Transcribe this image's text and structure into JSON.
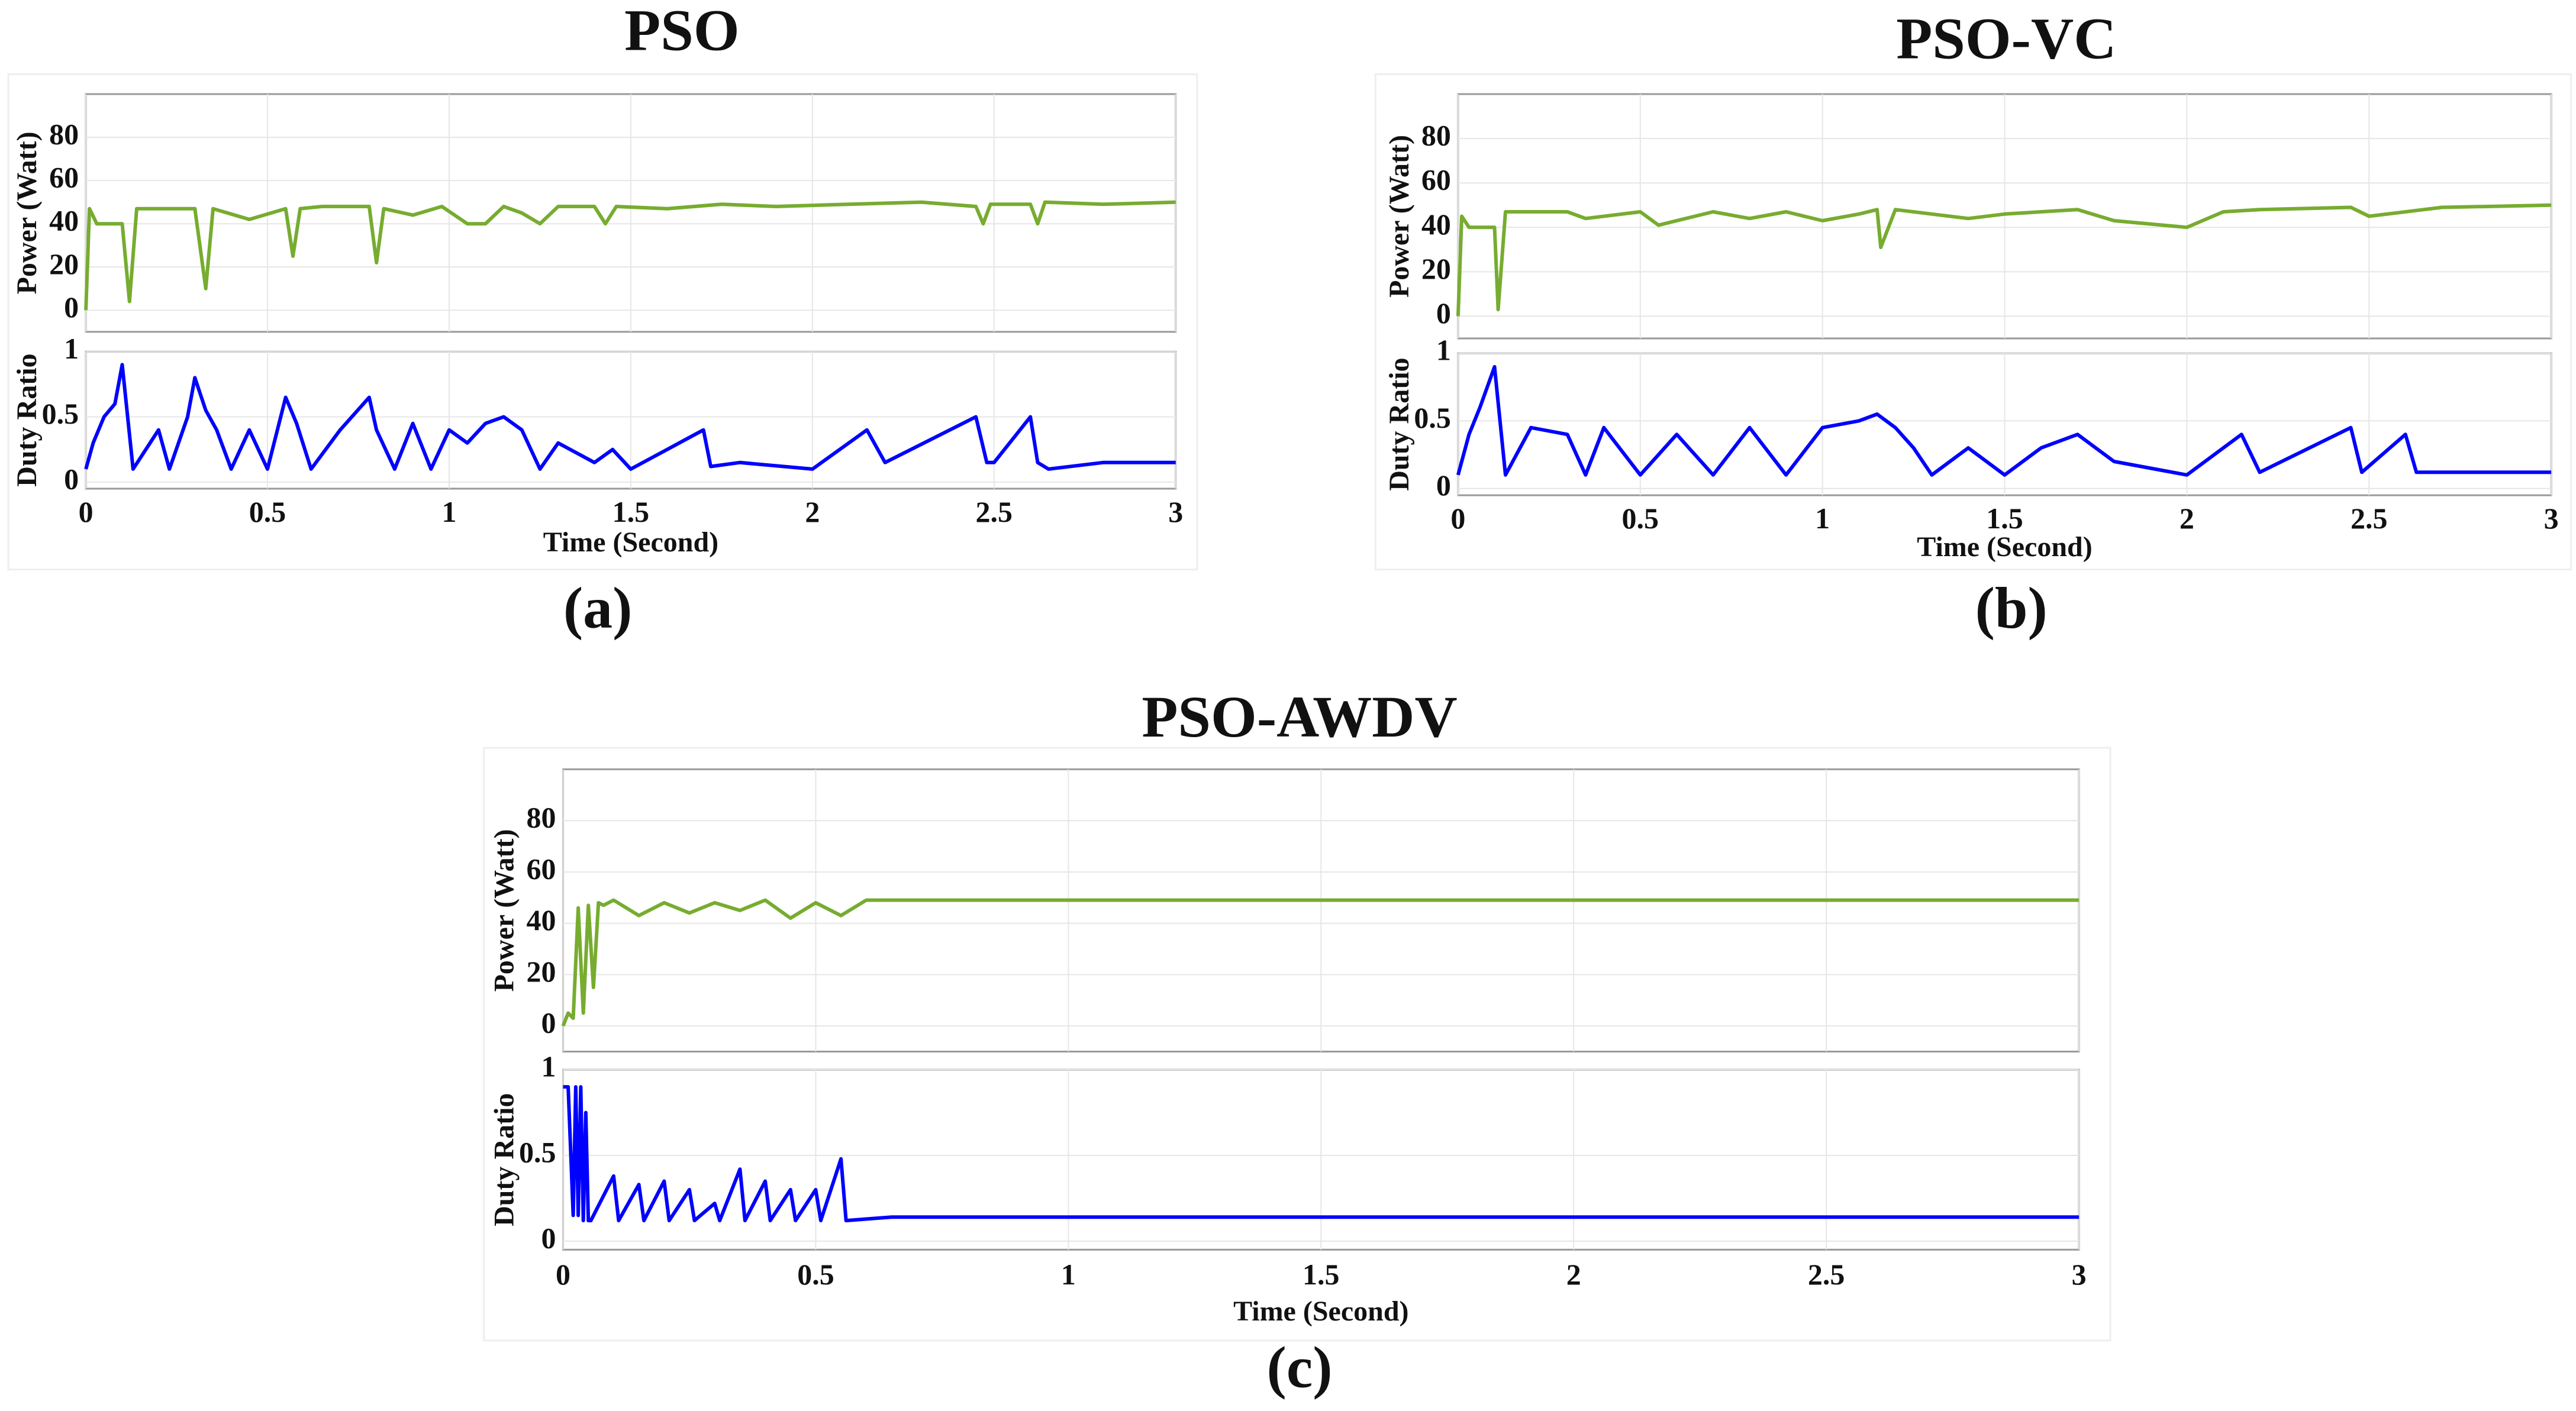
{
  "chart_data": [
    {
      "type": "line",
      "title": "PSO",
      "ylabel": "Power (Watt)",
      "color": "#77ac30",
      "grid": true,
      "show_xtick_labels": false,
      "x": [
        0,
        0.01,
        0.03,
        0.1,
        0.12,
        0.14,
        0.3,
        0.33,
        0.35,
        0.45,
        0.55,
        0.57,
        0.59,
        0.65,
        0.78,
        0.8,
        0.82,
        0.9,
        0.98,
        1.05,
        1.1,
        1.15,
        1.2,
        1.25,
        1.3,
        1.4,
        1.43,
        1.46,
        1.6,
        1.75,
        1.9,
        2.1,
        2.3,
        2.45,
        2.47,
        2.49,
        2.6,
        2.62,
        2.64,
        2.8,
        3
      ],
      "values": [
        0,
        47,
        40,
        40,
        4,
        47,
        47,
        10,
        47,
        42,
        47,
        25,
        47,
        48,
        48,
        22,
        47,
        44,
        48,
        40,
        40,
        48,
        45,
        40,
        48,
        48,
        40,
        48,
        47,
        49,
        48,
        49,
        50,
        48,
        40,
        49,
        49,
        40,
        50,
        49,
        50
      ],
      "xlim": [
        0,
        3
      ],
      "xticks": [
        0,
        0.5,
        1,
        1.5,
        2,
        2.5,
        3
      ],
      "ylim": [
        -10,
        100
      ],
      "yticks": [
        0,
        20,
        40,
        60,
        80
      ]
    },
    {
      "type": "line",
      "ylabel": "Duty Ratio",
      "xlabel": "Time (Second)",
      "caption": "(a)",
      "color": "#0000ff",
      "grid": true,
      "show_xtick_labels": true,
      "x": [
        0,
        0.02,
        0.05,
        0.08,
        0.1,
        0.13,
        0.2,
        0.23,
        0.28,
        0.3,
        0.33,
        0.36,
        0.4,
        0.45,
        0.5,
        0.55,
        0.58,
        0.62,
        0.7,
        0.78,
        0.8,
        0.85,
        0.9,
        0.95,
        1.0,
        1.05,
        1.1,
        1.15,
        1.2,
        1.25,
        1.3,
        1.4,
        1.45,
        1.5,
        1.7,
        1.72,
        1.8,
        2.0,
        2.15,
        2.2,
        2.45,
        2.48,
        2.5,
        2.6,
        2.62,
        2.65,
        2.8,
        3
      ],
      "values": [
        0.1,
        0.3,
        0.5,
        0.6,
        0.9,
        0.1,
        0.4,
        0.1,
        0.5,
        0.8,
        0.55,
        0.4,
        0.1,
        0.4,
        0.1,
        0.65,
        0.45,
        0.1,
        0.4,
        0.65,
        0.4,
        0.1,
        0.45,
        0.1,
        0.4,
        0.3,
        0.45,
        0.5,
        0.4,
        0.1,
        0.3,
        0.15,
        0.25,
        0.1,
        0.4,
        0.12,
        0.15,
        0.1,
        0.4,
        0.15,
        0.5,
        0.15,
        0.15,
        0.5,
        0.15,
        0.1,
        0.15,
        0.15
      ],
      "xlim": [
        0,
        3
      ],
      "xticks": [
        0,
        0.5,
        1,
        1.5,
        2,
        2.5,
        3
      ],
      "ylim": [
        -0.05,
        1
      ],
      "yticks": [
        0,
        0.5,
        1
      ]
    },
    {
      "type": "line",
      "title": "PSO-VC",
      "ylabel": "Power (Watt)",
      "color": "#77ac30",
      "grid": true,
      "show_xtick_labels": false,
      "x": [
        0,
        0.01,
        0.03,
        0.1,
        0.11,
        0.13,
        0.3,
        0.35,
        0.5,
        0.55,
        0.7,
        0.8,
        0.9,
        1.0,
        1.1,
        1.15,
        1.16,
        1.2,
        1.4,
        1.5,
        1.7,
        1.8,
        2.0,
        2.1,
        2.2,
        2.45,
        2.5,
        2.7,
        3
      ],
      "values": [
        0,
        45,
        40,
        40,
        3,
        47,
        47,
        44,
        47,
        41,
        47,
        44,
        47,
        43,
        46,
        48,
        31,
        48,
        44,
        46,
        48,
        43,
        40,
        47,
        48,
        49,
        45,
        49,
        50
      ],
      "xlim": [
        0,
        3
      ],
      "xticks": [
        0,
        0.5,
        1,
        1.5,
        2,
        2.5,
        3
      ],
      "ylim": [
        -10,
        100
      ],
      "yticks": [
        0,
        20,
        40,
        60,
        80
      ]
    },
    {
      "type": "line",
      "ylabel": "Duty Ratio",
      "xlabel": "Time (Second)",
      "caption": "(b)",
      "color": "#0000ff",
      "grid": true,
      "show_xtick_labels": true,
      "x": [
        0,
        0.03,
        0.06,
        0.1,
        0.13,
        0.2,
        0.3,
        0.35,
        0.4,
        0.5,
        0.6,
        0.7,
        0.8,
        0.9,
        1.0,
        1.1,
        1.15,
        1.2,
        1.25,
        1.3,
        1.4,
        1.5,
        1.6,
        1.7,
        1.8,
        2.0,
        2.15,
        2.2,
        2.45,
        2.48,
        2.6,
        2.63,
        2.8,
        3
      ],
      "values": [
        0.1,
        0.4,
        0.6,
        0.9,
        0.1,
        0.45,
        0.4,
        0.1,
        0.45,
        0.1,
        0.4,
        0.1,
        0.45,
        0.1,
        0.45,
        0.5,
        0.55,
        0.45,
        0.3,
        0.1,
        0.3,
        0.1,
        0.3,
        0.4,
        0.2,
        0.1,
        0.4,
        0.12,
        0.45,
        0.12,
        0.4,
        0.12,
        0.12,
        0.12
      ],
      "xlim": [
        0,
        3
      ],
      "xticks": [
        0,
        0.5,
        1,
        1.5,
        2,
        2.5,
        3
      ],
      "ylim": [
        -0.05,
        1
      ],
      "yticks": [
        0,
        0.5,
        1
      ]
    },
    {
      "type": "line",
      "title": "PSO-AWDV",
      "ylabel": "Power (Watt)",
      "color": "#77ac30",
      "grid": true,
      "show_xtick_labels": false,
      "x": [
        0,
        0.01,
        0.02,
        0.03,
        0.04,
        0.05,
        0.06,
        0.07,
        0.08,
        0.1,
        0.15,
        0.2,
        0.25,
        0.3,
        0.35,
        0.4,
        0.45,
        0.5,
        0.55,
        0.6,
        0.65,
        3
      ],
      "values": [
        0,
        5,
        3,
        46,
        5,
        47,
        15,
        48,
        47,
        49,
        43,
        48,
        44,
        48,
        45,
        49,
        42,
        48,
        43,
        49,
        49,
        49
      ],
      "xlim": [
        0,
        3
      ],
      "xticks": [
        0,
        0.5,
        1,
        1.5,
        2,
        2.5,
        3
      ],
      "ylim": [
        -10,
        100
      ],
      "yticks": [
        0,
        20,
        40,
        60,
        80
      ]
    },
    {
      "type": "line",
      "ylabel": "Duty Ratio",
      "xlabel": "Time (Second)",
      "caption": "(c)",
      "color": "#0000ff",
      "grid": true,
      "show_xtick_labels": true,
      "x": [
        0,
        0.01,
        0.02,
        0.025,
        0.03,
        0.035,
        0.04,
        0.045,
        0.05,
        0.055,
        0.1,
        0.11,
        0.15,
        0.16,
        0.2,
        0.21,
        0.25,
        0.26,
        0.3,
        0.31,
        0.35,
        0.36,
        0.4,
        0.41,
        0.45,
        0.46,
        0.5,
        0.51,
        0.55,
        0.56,
        0.65,
        3
      ],
      "values": [
        0.9,
        0.9,
        0.15,
        0.9,
        0.15,
        0.9,
        0.12,
        0.75,
        0.12,
        0.12,
        0.38,
        0.12,
        0.33,
        0.12,
        0.35,
        0.12,
        0.3,
        0.12,
        0.22,
        0.12,
        0.42,
        0.12,
        0.35,
        0.12,
        0.3,
        0.12,
        0.3,
        0.12,
        0.48,
        0.12,
        0.14,
        0.14
      ],
      "xlim": [
        0,
        3
      ],
      "xticks": [
        0,
        0.5,
        1,
        1.5,
        2,
        2.5,
        3
      ],
      "ylim": [
        -0.05,
        1
      ],
      "yticks": [
        0,
        0.5,
        1
      ]
    }
  ]
}
